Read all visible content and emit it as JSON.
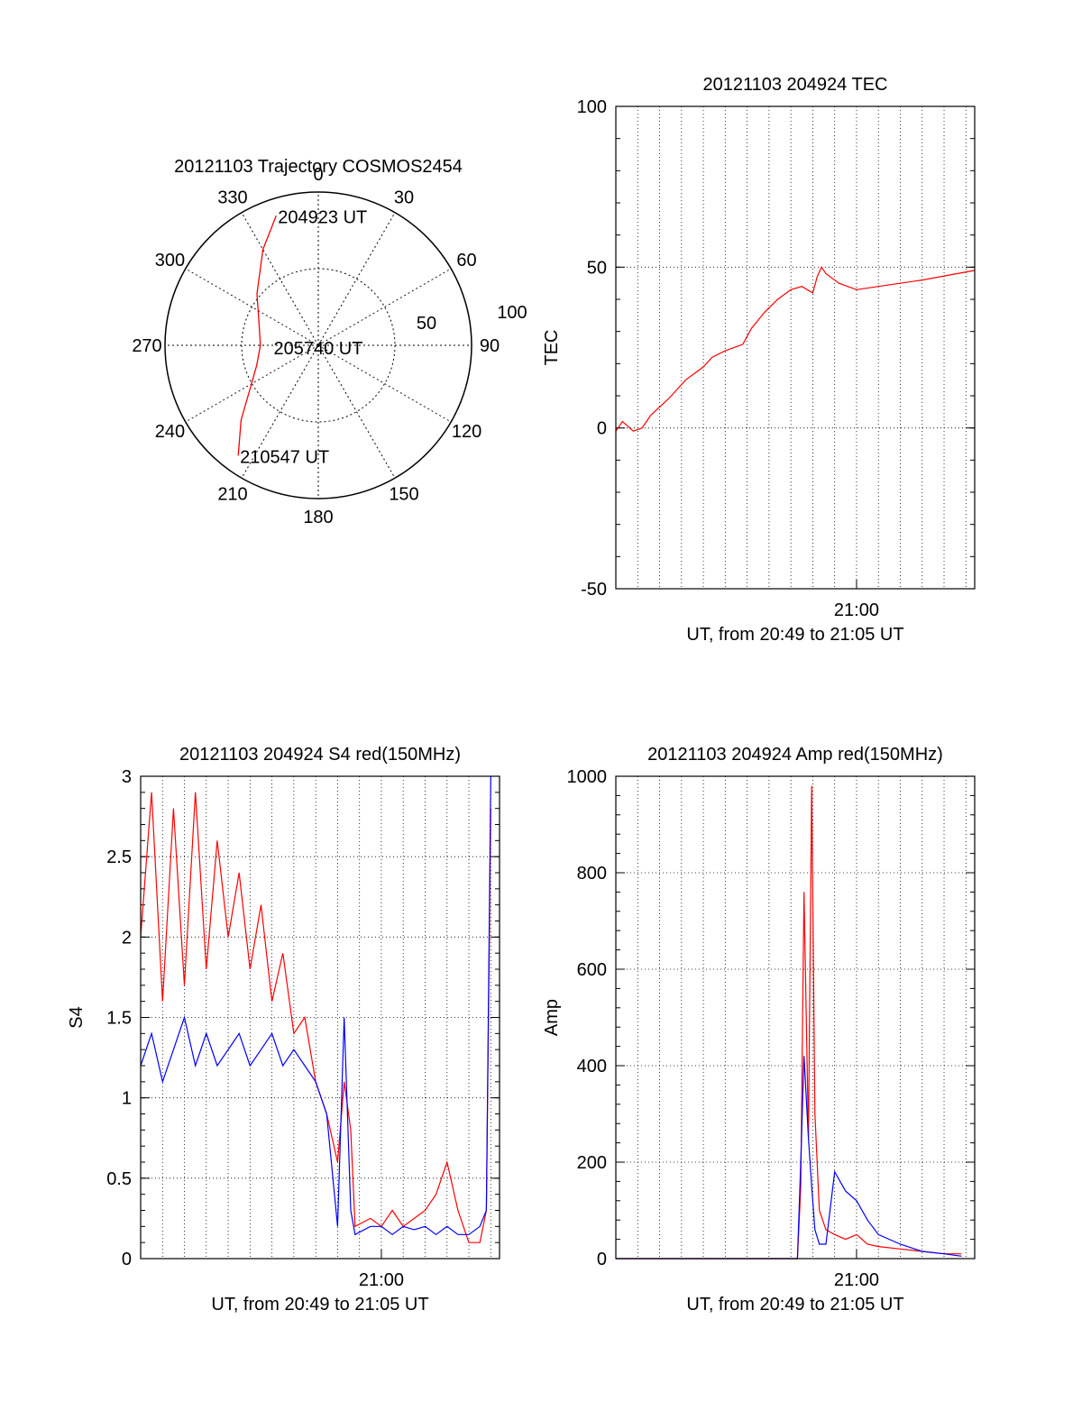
{
  "chart_data": [
    {
      "id": "polar",
      "type": "scatter",
      "title": "20121103 Trajectory COSMOS2454",
      "azimuth_labels": [
        "0",
        "30",
        "60",
        "90",
        "120",
        "150",
        "180",
        "210",
        "240",
        "270",
        "300",
        "330"
      ],
      "radial_labels": [
        "50",
        "100"
      ],
      "trajectory": [
        {
          "az": 342,
          "el": 10
        },
        {
          "az": 330,
          "el": 25
        },
        {
          "az": 310,
          "el": 43
        },
        {
          "az": 290,
          "el": 53
        },
        {
          "az": 270,
          "el": 56
        },
        {
          "az": 252,
          "el": 52
        },
        {
          "az": 238,
          "el": 43
        },
        {
          "az": 226,
          "el": 27
        },
        {
          "az": 216,
          "el": 10
        }
      ],
      "annotations": [
        "204923 UT",
        "205740 UT",
        "210547 UT"
      ],
      "color": "#ff0000"
    },
    {
      "id": "tec",
      "type": "line",
      "title": "20121103 204924 TEC",
      "xlabel": "UT, from 20:49 to 21:05 UT",
      "ylabel": "TEC",
      "xlim": [
        0,
        16.4
      ],
      "ylim": [
        -50,
        100
      ],
      "yticks": [
        "-50",
        "0",
        "50",
        "100"
      ],
      "xtick_labels": [
        {
          "x": 11,
          "label": "21:00"
        }
      ],
      "grid": true,
      "series": [
        {
          "color": "#ff0000",
          "x": [
            0,
            0.3,
            0.8,
            1.2,
            1.6,
            2.4,
            3.2,
            4.0,
            4.4,
            5.0,
            5.8,
            6.2,
            6.8,
            7.4,
            8.0,
            8.5,
            9.0,
            9.2,
            9.4,
            9.6,
            10.2,
            11.0,
            12.0,
            14.0,
            16.4
          ],
          "y": [
            -1,
            2,
            -1,
            0,
            4,
            9,
            15,
            19,
            22,
            24,
            26,
            31,
            36,
            40,
            43,
            44,
            42,
            47,
            50,
            48,
            45,
            43,
            44,
            46,
            49
          ]
        }
      ]
    },
    {
      "id": "s4",
      "type": "line",
      "title": "20121103 204924 S4 red(150MHz)",
      "xlabel": "UT, from 20:49 to 21:05 UT",
      "ylabel": "S4",
      "xlim": [
        0,
        16.4
      ],
      "ylim": [
        0,
        3
      ],
      "yticks": [
        "0",
        "0.5",
        "1",
        "1.5",
        "2",
        "2.5",
        "3"
      ],
      "xtick_labels": [
        {
          "x": 11,
          "label": "21:00"
        }
      ],
      "grid": true,
      "series": [
        {
          "color": "#ff0000",
          "x": [
            0,
            0.5,
            1.0,
            1.5,
            2.0,
            2.5,
            3.0,
            3.5,
            4.0,
            4.5,
            5.0,
            5.5,
            6.0,
            6.5,
            7.0,
            7.5,
            8.0,
            8.5,
            9.0,
            9.3,
            9.6,
            9.8,
            10.5,
            11.0,
            11.5,
            12.0,
            12.5,
            13.0,
            13.5,
            14.0,
            14.5,
            15.0,
            15.5,
            15.8,
            16.0
          ],
          "y": [
            2.0,
            2.9,
            1.6,
            2.8,
            1.7,
            2.9,
            1.8,
            2.6,
            2.0,
            2.4,
            1.8,
            2.2,
            1.6,
            1.9,
            1.4,
            1.5,
            1.1,
            0.9,
            0.6,
            1.1,
            0.8,
            0.2,
            0.25,
            0.2,
            0.3,
            0.2,
            0.25,
            0.3,
            0.4,
            0.6,
            0.3,
            0.1,
            0.1,
            0.3,
            2.8
          ]
        },
        {
          "color": "#0000ff",
          "x": [
            0,
            0.5,
            1.0,
            1.5,
            2.0,
            2.5,
            3.0,
            3.5,
            4.0,
            4.5,
            5.0,
            5.5,
            6.0,
            6.5,
            7.0,
            7.5,
            8.0,
            8.5,
            9.0,
            9.3,
            9.6,
            9.8,
            10.5,
            11.0,
            11.5,
            12.0,
            12.5,
            13.0,
            13.5,
            14.0,
            14.5,
            15.0,
            15.5,
            15.8,
            16.0
          ],
          "y": [
            1.2,
            1.4,
            1.1,
            1.3,
            1.5,
            1.2,
            1.4,
            1.2,
            1.3,
            1.4,
            1.2,
            1.3,
            1.4,
            1.2,
            1.3,
            1.2,
            1.1,
            0.9,
            0.2,
            1.5,
            0.3,
            0.15,
            0.2,
            0.2,
            0.15,
            0.2,
            0.18,
            0.2,
            0.15,
            0.2,
            0.15,
            0.15,
            0.2,
            0.3,
            3.0
          ]
        }
      ]
    },
    {
      "id": "amp",
      "type": "line",
      "title": "20121103 204924 Amp red(150MHz)",
      "xlabel": "UT, from 20:49 to 21:05 UT",
      "ylabel": "Amp",
      "xlim": [
        0,
        16.4
      ],
      "ylim": [
        0,
        1000
      ],
      "yticks": [
        "0",
        "200",
        "400",
        "600",
        "800",
        "1000"
      ],
      "xtick_labels": [
        {
          "x": 11,
          "label": "21:00"
        }
      ],
      "grid": true,
      "series": [
        {
          "color": "#ff0000",
          "x": [
            0,
            4,
            8.3,
            8.45,
            8.6,
            8.8,
            8.95,
            9.1,
            9.3,
            9.6,
            10.0,
            10.5,
            11.0,
            11.5,
            12.0,
            13.0,
            14.0,
            15.0,
            15.8
          ],
          "y": [
            0,
            0,
            0,
            150,
            760,
            250,
            980,
            300,
            100,
            60,
            50,
            40,
            50,
            30,
            25,
            20,
            15,
            10,
            10
          ]
        },
        {
          "color": "#0000ff",
          "x": [
            0,
            4,
            8.3,
            8.45,
            8.6,
            8.8,
            8.95,
            9.1,
            9.3,
            9.6,
            10.0,
            10.5,
            11.0,
            11.5,
            12.0,
            13.0,
            14.0,
            15.0,
            15.8
          ],
          "y": [
            0,
            0,
            0,
            200,
            420,
            250,
            150,
            60,
            30,
            30,
            180,
            140,
            120,
            80,
            50,
            30,
            15,
            10,
            5
          ]
        }
      ]
    }
  ]
}
